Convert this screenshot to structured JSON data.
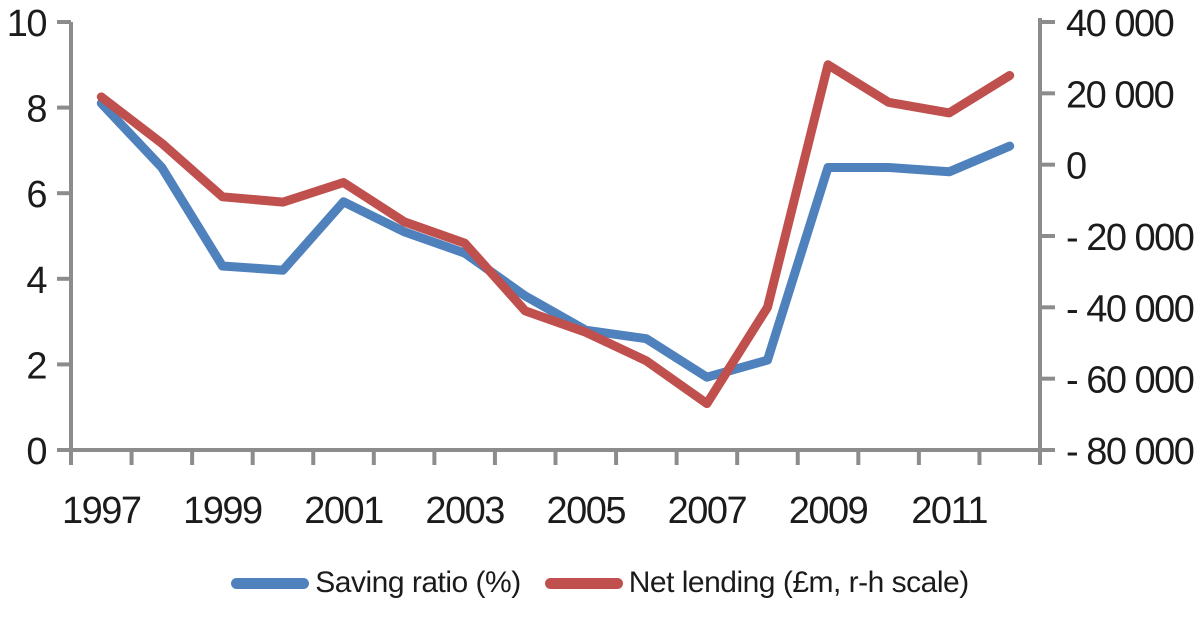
{
  "chart_data": {
    "type": "line",
    "title": "",
    "x_categories": [
      1997,
      1998,
      1999,
      2000,
      2001,
      2002,
      2003,
      2004,
      2005,
      2006,
      2007,
      2008,
      2009,
      2010,
      2011,
      2012
    ],
    "x_tick_labels": [
      "1997",
      "1999",
      "2001",
      "2003",
      "2005",
      "2007",
      "2009",
      "2011"
    ],
    "series": [
      {
        "name": "Saving ratio (%)",
        "axis": "left",
        "color": "#4F81BD",
        "values": [
          8.1,
          6.6,
          4.3,
          4.2,
          5.8,
          5.1,
          4.6,
          3.6,
          2.8,
          2.6,
          1.7,
          2.1,
          6.6,
          6.6,
          6.5,
          7.1
        ]
      },
      {
        "name": "Net lending (£m, r-h scale)",
        "axis": "right",
        "color": "#C0504D",
        "values": [
          19000,
          6000,
          -9000,
          -10500,
          -5000,
          -16000,
          -22000,
          -41000,
          -47000,
          -55000,
          -67000,
          -40000,
          28000,
          17500,
          14500,
          25000
        ]
      }
    ],
    "left_axis": {
      "min": 0,
      "max": 10,
      "step": 2,
      "tick_labels": [
        "0",
        "2",
        "4",
        "6",
        "8",
        "10"
      ]
    },
    "right_axis": {
      "min": -80000,
      "max": 40000,
      "step": 20000,
      "tick_labels": [
        "- 80 000",
        "- 60 000",
        "- 40 000",
        "- 20 000",
        "0",
        "20 000",
        "40 000"
      ]
    },
    "grid": false,
    "legend_position": "bottom"
  },
  "style": {
    "axis_color": "#8C8C8C",
    "text_color": "#1b1b1b",
    "background": "#FFFFFF"
  }
}
